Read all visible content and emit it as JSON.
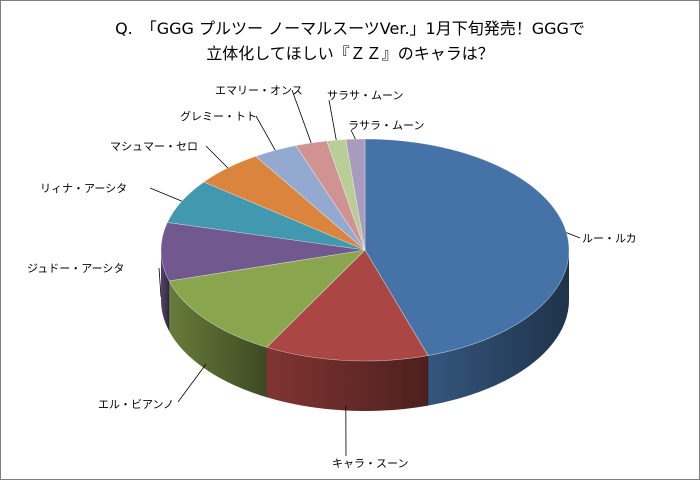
{
  "chart_data": {
    "type": "pie",
    "title_lines": [
      "Q.　「GGG プルツー ノーマルスーツVer.」1月下旬発売！GGGで",
      "立体化してほしい『ＺＺ』のキャラは？"
    ],
    "slices": [
      {
        "label": "ルー・ルカ",
        "value": 45.0,
        "color": "#4572a7"
      },
      {
        "label": "キャラ・スーン",
        "value": 13.0,
        "color": "#aa4643"
      },
      {
        "label": "エル・ビアンノ",
        "value": 12.5,
        "color": "#89a54e"
      },
      {
        "label": "ジュドー・アーシタ",
        "value": 8.5,
        "color": "#71588f"
      },
      {
        "label": "リィナ・アーシタ",
        "value": 6.5,
        "color": "#4198af"
      },
      {
        "label": "マシュマー・セロ",
        "value": 5.5,
        "color": "#db843d"
      },
      {
        "label": "グレミー・トト",
        "value": 3.5,
        "color": "#93a9cf"
      },
      {
        "label": "エマリー・オンス",
        "value": 2.5,
        "color": "#d19392"
      },
      {
        "label": "サラサ・ムーン",
        "value": 1.5,
        "color": "#b9cd96"
      },
      {
        "label": "ラサラ・ムーン",
        "value": 1.5,
        "color": "#a99bbd"
      }
    ],
    "legend": "none",
    "data_labels": "outside with leader lines"
  }
}
